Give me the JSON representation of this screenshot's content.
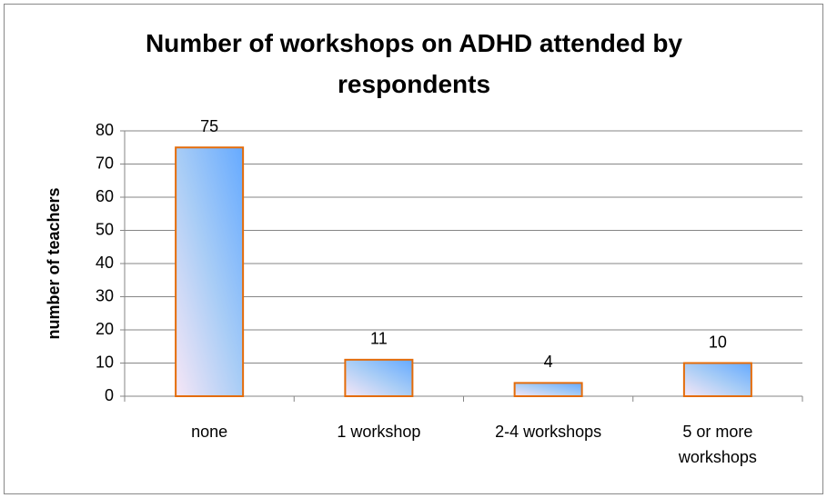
{
  "chart_data": {
    "type": "bar",
    "title": "Number of workshops on ADHD attended by respondents",
    "y_label": "number of teachers",
    "categories": [
      "none",
      "1 workshop",
      "2-4 workshops",
      "5 or more workshops"
    ],
    "values": [
      75,
      11,
      4,
      10
    ],
    "ylim": [
      0,
      80
    ],
    "yticks": [
      0,
      10,
      20,
      30,
      40,
      50,
      60,
      70,
      80
    ],
    "grid": true,
    "color": "#66aaff",
    "edge_color": "#e46c0a"
  }
}
